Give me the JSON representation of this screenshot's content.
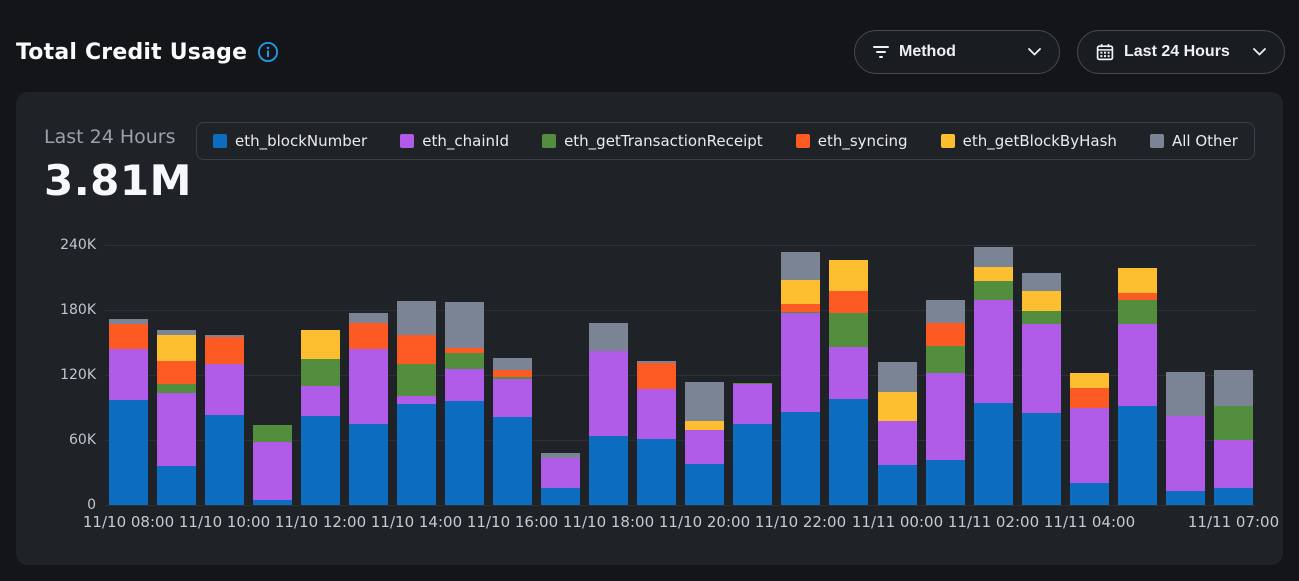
{
  "header": {
    "title": "Total Credit Usage",
    "buttons": {
      "method": {
        "label": "Method"
      },
      "date_range": {
        "label": "Last 24 Hours"
      }
    }
  },
  "summary": {
    "period_label": "Last 24 Hours",
    "total": "3.81M"
  },
  "colors": {
    "info_icon_blue": "#229de8",
    "page_bg": "#131519",
    "card_bg": "#1f2327"
  },
  "chart_data": {
    "type": "bar",
    "stacked": true,
    "num_bars": 24,
    "values_unit": "thousands_of_credits",
    "ymax_k": 240,
    "grid": true,
    "legend_position": "top",
    "yticks": [
      {
        "label": "240K",
        "value": 240
      },
      {
        "label": "180K",
        "value": 180
      },
      {
        "label": "120K",
        "value": 120
      },
      {
        "label": "60K",
        "value": 60
      },
      {
        "label": "0",
        "value": 0
      }
    ],
    "xticks": [
      {
        "bar": 0,
        "label": "11/10 08:00"
      },
      {
        "bar": 2,
        "label": "11/10 10:00"
      },
      {
        "bar": 4,
        "label": "11/10 12:00"
      },
      {
        "bar": 6,
        "label": "11/10 14:00"
      },
      {
        "bar": 8,
        "label": "11/10 16:00"
      },
      {
        "bar": 10,
        "label": "11/10 18:00"
      },
      {
        "bar": 12,
        "label": "11/10 20:00"
      },
      {
        "bar": 14,
        "label": "11/10 22:00"
      },
      {
        "bar": 16,
        "label": "11/11 00:00"
      },
      {
        "bar": 18,
        "label": "11/11 02:00"
      },
      {
        "bar": 20,
        "label": "11/11 04:00"
      },
      {
        "bar": 23,
        "label": "11/11 07:00"
      }
    ],
    "series": [
      {
        "name": "eth_blockNumber",
        "color": "#0b6cc0",
        "values": [
          97,
          36,
          83,
          5,
          82,
          75,
          93,
          96,
          81,
          16,
          64,
          61,
          38,
          75,
          86,
          98,
          37,
          42,
          94,
          85,
          20,
          91,
          13,
          16
        ]
      },
      {
        "name": "eth_chainId",
        "color": "#b15ce9",
        "values": [
          47,
          67,
          47,
          53,
          28,
          69,
          8,
          30,
          35,
          27,
          78,
          46,
          31,
          37,
          91,
          48,
          41,
          80,
          95,
          82,
          70,
          76,
          69,
          44
        ]
      },
      {
        "name": "eth_getTransactionReceipt",
        "color": "#538d3e",
        "values": [
          0,
          9,
          0,
          16,
          25,
          0,
          29,
          14,
          2,
          0,
          0,
          0,
          0,
          1,
          1,
          31,
          0,
          25,
          18,
          12,
          0,
          22,
          0,
          31
        ]
      },
      {
        "name": "eth_syncing",
        "color": "#fd5a24",
        "values": [
          23,
          21,
          25,
          0,
          0,
          24,
          27,
          5,
          7,
          0,
          0,
          24,
          0,
          0,
          8,
          21,
          0,
          21,
          0,
          0,
          18,
          7,
          0,
          0
        ]
      },
      {
        "name": "eth_getBlockByHash",
        "color": "#fdbe30",
        "values": [
          0,
          24,
          0,
          0,
          27,
          0,
          0,
          0,
          0,
          0,
          0,
          0,
          9,
          0,
          22,
          28,
          26,
          0,
          13,
          19,
          14,
          23,
          0,
          0
        ]
      },
      {
        "name": "All Other",
        "color": "#7b8494",
        "values": [
          5,
          5,
          2,
          0,
          0,
          9,
          31,
          42,
          11,
          5,
          26,
          2,
          36,
          0,
          26,
          0,
          28,
          21,
          18,
          16,
          0,
          0,
          41,
          34
        ]
      }
    ]
  }
}
